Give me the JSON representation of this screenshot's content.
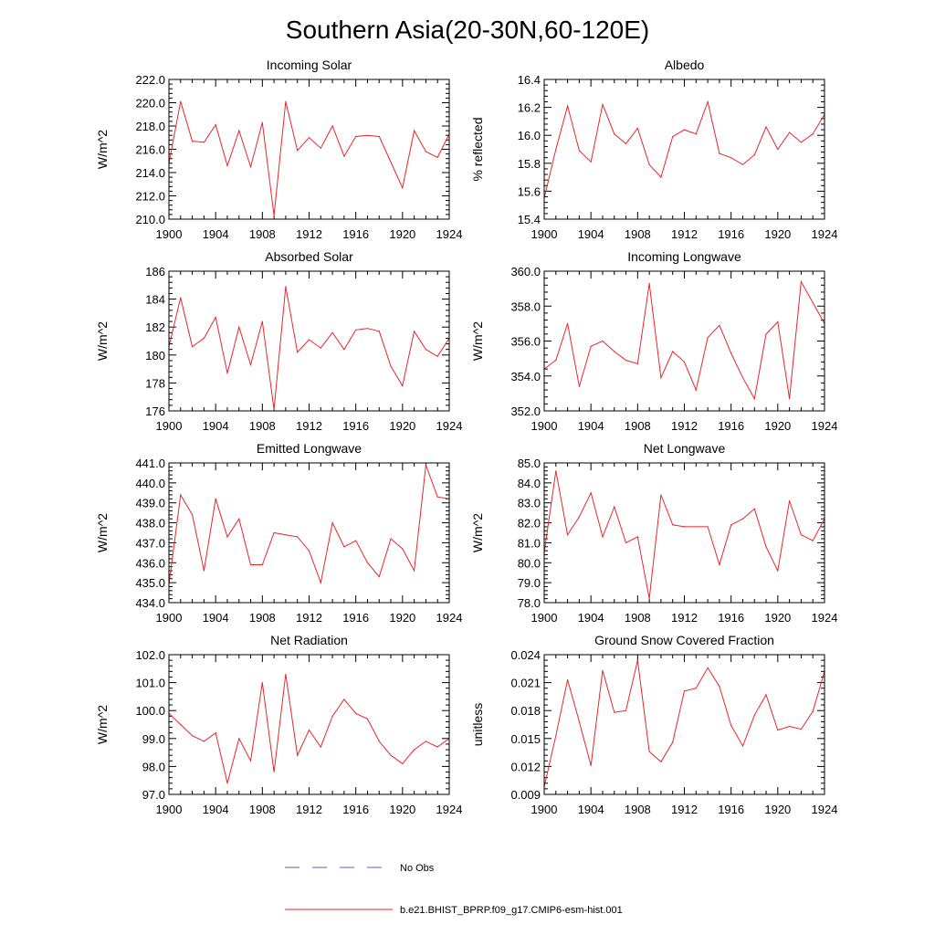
{
  "page_title": "Southern Asia(20-30N,60-120E)",
  "legend": {
    "obs_label": "No Obs",
    "obs_color": "#5b5bd0",
    "model_label": "b.e21.BHIST_BPRP.f09_g17.CMIP6-esm-hist.001",
    "model_color": "#e8262a"
  },
  "chart_data": [
    {
      "type": "line",
      "title": "Incoming Solar",
      "ylabel": "W/m^2",
      "xlim": [
        1900,
        1924
      ],
      "x_ticks": [
        "1900",
        "1904",
        "1908",
        "1912",
        "1916",
        "1920",
        "1924"
      ],
      "ylim": [
        210.0,
        222.0
      ],
      "y_ticks": [
        "210.0",
        "212.0",
        "214.0",
        "216.0",
        "218.0",
        "220.0",
        "222.0"
      ],
      "x": [
        1900,
        1901,
        1902,
        1903,
        1904,
        1905,
        1906,
        1907,
        1908,
        1909,
        1910,
        1911,
        1912,
        1913,
        1914,
        1915,
        1916,
        1917,
        1918,
        1919,
        1920,
        1921,
        1922,
        1923,
        1924
      ],
      "values": [
        214.8,
        220.1,
        216.7,
        216.6,
        218.1,
        214.6,
        217.6,
        214.5,
        218.3,
        210.3,
        220.1,
        215.9,
        217.0,
        216.1,
        218.0,
        215.4,
        217.1,
        217.2,
        217.1,
        214.9,
        212.7,
        217.6,
        215.8,
        215.3,
        217.3
      ]
    },
    {
      "type": "line",
      "title": "Albedo",
      "ylabel": "% reflected",
      "xlim": [
        1900,
        1924
      ],
      "x_ticks": [
        "1900",
        "1904",
        "1908",
        "1912",
        "1916",
        "1920",
        "1924"
      ],
      "ylim": [
        15.4,
        16.4
      ],
      "y_ticks": [
        "15.4",
        "15.6",
        "15.8",
        "16.0",
        "16.2",
        "16.4"
      ],
      "x": [
        1900,
        1901,
        1902,
        1903,
        1904,
        1905,
        1906,
        1907,
        1908,
        1909,
        1910,
        1911,
        1912,
        1913,
        1914,
        1915,
        1916,
        1917,
        1918,
        1919,
        1920,
        1921,
        1922,
        1923,
        1924
      ],
      "values": [
        15.55,
        15.9,
        16.21,
        15.89,
        15.81,
        16.22,
        16.01,
        15.94,
        16.05,
        15.79,
        15.7,
        15.99,
        16.04,
        16.01,
        16.24,
        15.87,
        15.84,
        15.79,
        15.86,
        16.06,
        15.9,
        16.02,
        15.95,
        16.01,
        16.15
      ]
    },
    {
      "type": "line",
      "title": "Absorbed Solar",
      "ylabel": "W/m^2",
      "xlim": [
        1900,
        1924
      ],
      "x_ticks": [
        "1900",
        "1904",
        "1908",
        "1912",
        "1916",
        "1920",
        "1924"
      ],
      "ylim": [
        176,
        186
      ],
      "y_ticks": [
        "176",
        "178",
        "180",
        "182",
        "184",
        "186"
      ],
      "x": [
        1900,
        1901,
        1902,
        1903,
        1904,
        1905,
        1906,
        1907,
        1908,
        1909,
        1910,
        1911,
        1912,
        1913,
        1914,
        1915,
        1916,
        1917,
        1918,
        1919,
        1920,
        1921,
        1922,
        1923,
        1924
      ],
      "values": [
        180.6,
        184.1,
        180.6,
        181.2,
        182.7,
        178.7,
        182.0,
        179.3,
        182.4,
        176.1,
        184.9,
        180.2,
        181.1,
        180.5,
        181.6,
        180.4,
        181.8,
        181.9,
        181.7,
        179.2,
        177.8,
        181.7,
        180.4,
        179.9,
        181.2
      ]
    },
    {
      "type": "line",
      "title": "Incoming Longwave",
      "ylabel": "W/m^2",
      "xlim": [
        1900,
        1924
      ],
      "x_ticks": [
        "1900",
        "1904",
        "1908",
        "1912",
        "1916",
        "1920",
        "1924"
      ],
      "ylim": [
        352.0,
        360.0
      ],
      "y_ticks": [
        "352.0",
        "354.0",
        "356.0",
        "358.0",
        "360.0"
      ],
      "x": [
        1900,
        1901,
        1902,
        1903,
        1904,
        1905,
        1906,
        1907,
        1908,
        1909,
        1910,
        1911,
        1912,
        1913,
        1914,
        1915,
        1916,
        1917,
        1918,
        1919,
        1920,
        1921,
        1922,
        1923,
        1924
      ],
      "values": [
        354.4,
        354.9,
        357.0,
        353.4,
        355.7,
        356.0,
        355.4,
        354.9,
        354.7,
        359.3,
        353.9,
        355.4,
        354.8,
        353.2,
        356.2,
        356.9,
        355.3,
        353.9,
        352.7,
        356.4,
        357.1,
        352.7,
        359.4,
        358.2,
        357.0
      ]
    },
    {
      "type": "line",
      "title": "Emitted Longwave",
      "ylabel": "W/m^2",
      "xlim": [
        1900,
        1924
      ],
      "x_ticks": [
        "1900",
        "1904",
        "1908",
        "1912",
        "1916",
        "1920",
        "1924"
      ],
      "ylim": [
        434.0,
        441.0
      ],
      "y_ticks": [
        "434.0",
        "435.0",
        "436.0",
        "437.0",
        "438.0",
        "439.0",
        "440.0",
        "441.0"
      ],
      "x": [
        1900,
        1901,
        1902,
        1903,
        1904,
        1905,
        1906,
        1907,
        1908,
        1909,
        1910,
        1911,
        1912,
        1913,
        1914,
        1915,
        1916,
        1917,
        1918,
        1919,
        1920,
        1921,
        1922,
        1923,
        1924
      ],
      "values": [
        434.9,
        439.4,
        438.4,
        435.6,
        439.2,
        437.3,
        438.2,
        435.9,
        435.9,
        437.5,
        437.4,
        437.3,
        436.6,
        435.0,
        438.0,
        436.8,
        437.1,
        436.0,
        435.3,
        437.2,
        436.7,
        435.6,
        440.9,
        439.3,
        439.2
      ]
    },
    {
      "type": "line",
      "title": "Net Longwave",
      "ylabel": "W/m^2",
      "xlim": [
        1900,
        1924
      ],
      "x_ticks": [
        "1900",
        "1904",
        "1908",
        "1912",
        "1916",
        "1920",
        "1924"
      ],
      "ylim": [
        78.0,
        85.0
      ],
      "y_ticks": [
        "78.0",
        "79.0",
        "80.0",
        "81.0",
        "82.0",
        "83.0",
        "84.0",
        "85.0"
      ],
      "x": [
        1900,
        1901,
        1902,
        1903,
        1904,
        1905,
        1906,
        1907,
        1908,
        1909,
        1910,
        1911,
        1912,
        1913,
        1914,
        1915,
        1916,
        1917,
        1918,
        1919,
        1920,
        1921,
        1922,
        1923,
        1924
      ],
      "values": [
        80.5,
        84.6,
        81.4,
        82.3,
        83.5,
        81.3,
        82.8,
        81.0,
        81.3,
        78.2,
        83.4,
        81.9,
        81.8,
        81.8,
        81.8,
        79.9,
        81.9,
        82.2,
        82.7,
        80.8,
        79.6,
        83.1,
        81.4,
        81.1,
        82.2
      ]
    },
    {
      "type": "line",
      "title": "Net Radiation",
      "ylabel": "W/m^2",
      "xlim": [
        1900,
        1924
      ],
      "x_ticks": [
        "1900",
        "1904",
        "1908",
        "1912",
        "1916",
        "1920",
        "1924"
      ],
      "ylim": [
        97.0,
        102.0
      ],
      "y_ticks": [
        "97.0",
        "98.0",
        "99.0",
        "100.0",
        "101.0",
        "102.0"
      ],
      "x": [
        1900,
        1901,
        1902,
        1903,
        1904,
        1905,
        1906,
        1907,
        1908,
        1909,
        1910,
        1911,
        1912,
        1913,
        1914,
        1915,
        1916,
        1917,
        1918,
        1919,
        1920,
        1921,
        1922,
        1923,
        1924
      ],
      "values": [
        99.9,
        99.5,
        99.1,
        98.9,
        99.2,
        97.4,
        99.0,
        98.2,
        101.0,
        97.8,
        101.3,
        98.4,
        99.3,
        98.7,
        99.8,
        100.4,
        99.9,
        99.7,
        98.9,
        98.4,
        98.1,
        98.6,
        98.9,
        98.7,
        99.0
      ]
    },
    {
      "type": "line",
      "title": "Ground Snow Covered Fraction",
      "ylabel": "unitless",
      "xlim": [
        1900,
        1924
      ],
      "x_ticks": [
        "1900",
        "1904",
        "1908",
        "1912",
        "1916",
        "1920",
        "1924"
      ],
      "ylim": [
        0.009,
        0.024
      ],
      "y_ticks": [
        "0.009",
        "0.012",
        "0.015",
        "0.018",
        "0.021",
        "0.024"
      ],
      "x": [
        1900,
        1901,
        1902,
        1903,
        1904,
        1905,
        1906,
        1907,
        1908,
        1909,
        1910,
        1911,
        1912,
        1913,
        1914,
        1915,
        1916,
        1917,
        1918,
        1919,
        1920,
        1921,
        1922,
        1923,
        1924
      ],
      "values": [
        0.0098,
        0.0153,
        0.0213,
        0.0168,
        0.0121,
        0.0223,
        0.0178,
        0.018,
        0.0234,
        0.0136,
        0.0125,
        0.0146,
        0.0201,
        0.0204,
        0.0226,
        0.0206,
        0.0164,
        0.0142,
        0.0175,
        0.0197,
        0.0159,
        0.0163,
        0.016,
        0.0179,
        0.0222
      ]
    }
  ]
}
